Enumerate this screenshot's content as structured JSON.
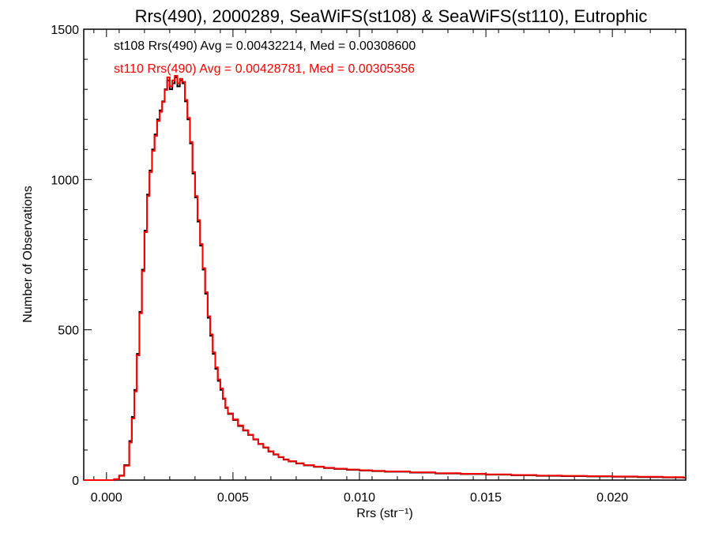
{
  "chart_data": {
    "type": "step-histogram",
    "title": "Rrs(490), 2000289, SeaWiFS(st108) & SeaWiFS(st110), Eutrophic",
    "xlabel": "Rrs (str⁻¹)",
    "ylabel": "Number of Observations",
    "xlim": [
      -0.0009,
      0.0229
    ],
    "ylim": [
      0,
      1500
    ],
    "xticks": [
      0.0,
      0.005,
      0.01,
      0.015,
      0.02
    ],
    "xtick_labels": [
      "0.000",
      "0.005",
      "0.010",
      "0.015",
      "0.020"
    ],
    "yticks": [
      0,
      500,
      1000,
      1500
    ],
    "ytick_labels": [
      "0",
      "500",
      "1000",
      "1500"
    ],
    "grid": false,
    "annotations": [
      {
        "text": "st108 Rrs(490) Avg = 0.00432214, Med = 0.00308600",
        "color": "#000000"
      },
      {
        "text": "st110 Rrs(490) Avg = 0.00428781, Med = 0.00305356",
        "color": "#ff0000"
      }
    ],
    "series": [
      {
        "color": "#000000",
        "points": [
          [
            -0.0009,
            0
          ],
          [
            0.0003,
            3
          ],
          [
            0.0005,
            15
          ],
          [
            0.0007,
            50
          ],
          [
            0.0009,
            130
          ],
          [
            0.001,
            210
          ],
          [
            0.0011,
            300
          ],
          [
            0.0012,
            420
          ],
          [
            0.0013,
            560
          ],
          [
            0.0014,
            700
          ],
          [
            0.0015,
            830
          ],
          [
            0.0016,
            950
          ],
          [
            0.0017,
            1030
          ],
          [
            0.0018,
            1100
          ],
          [
            0.0019,
            1150
          ],
          [
            0.002,
            1200
          ],
          [
            0.0021,
            1230
          ],
          [
            0.0022,
            1260
          ],
          [
            0.0023,
            1300
          ],
          [
            0.0024,
            1330
          ],
          [
            0.0025,
            1300
          ],
          [
            0.0026,
            1320
          ],
          [
            0.0027,
            1340
          ],
          [
            0.0028,
            1310
          ],
          [
            0.0029,
            1330
          ],
          [
            0.003,
            1320
          ],
          [
            0.0031,
            1260
          ],
          [
            0.0032,
            1200
          ],
          [
            0.0033,
            1120
          ],
          [
            0.0034,
            1020
          ],
          [
            0.0035,
            940
          ],
          [
            0.0036,
            860
          ],
          [
            0.0037,
            780
          ],
          [
            0.0038,
            700
          ],
          [
            0.0039,
            620
          ],
          [
            0.004,
            540
          ],
          [
            0.0041,
            480
          ],
          [
            0.0042,
            420
          ],
          [
            0.0043,
            370
          ],
          [
            0.0044,
            330
          ],
          [
            0.0045,
            300
          ],
          [
            0.0046,
            270
          ],
          [
            0.0047,
            240
          ],
          [
            0.0048,
            220
          ],
          [
            0.005,
            200
          ],
          [
            0.0052,
            180
          ],
          [
            0.0054,
            165
          ],
          [
            0.0056,
            150
          ],
          [
            0.0058,
            135
          ],
          [
            0.006,
            120
          ],
          [
            0.0062,
            108
          ],
          [
            0.0064,
            95
          ],
          [
            0.0066,
            85
          ],
          [
            0.0068,
            76
          ],
          [
            0.007,
            68
          ],
          [
            0.0072,
            62
          ],
          [
            0.0075,
            55
          ],
          [
            0.0078,
            49
          ],
          [
            0.0082,
            44
          ],
          [
            0.0086,
            40
          ],
          [
            0.009,
            37
          ],
          [
            0.0095,
            34
          ],
          [
            0.01,
            32
          ],
          [
            0.0105,
            30
          ],
          [
            0.011,
            28
          ],
          [
            0.012,
            25
          ],
          [
            0.013,
            22
          ],
          [
            0.014,
            20
          ],
          [
            0.015,
            18
          ],
          [
            0.016,
            16
          ],
          [
            0.017,
            14
          ],
          [
            0.018,
            13
          ],
          [
            0.019,
            12
          ],
          [
            0.02,
            11
          ],
          [
            0.021,
            10
          ],
          [
            0.022,
            9
          ],
          [
            0.0228,
            8
          ]
        ]
      },
      {
        "color": "#ff0000",
        "points": [
          [
            -0.0009,
            0
          ],
          [
            0.0003,
            3
          ],
          [
            0.0005,
            14
          ],
          [
            0.0007,
            48
          ],
          [
            0.0009,
            125
          ],
          [
            0.001,
            205
          ],
          [
            0.0011,
            295
          ],
          [
            0.0012,
            415
          ],
          [
            0.0013,
            555
          ],
          [
            0.0014,
            695
          ],
          [
            0.0015,
            825
          ],
          [
            0.0016,
            945
          ],
          [
            0.0017,
            1025
          ],
          [
            0.0018,
            1095
          ],
          [
            0.0019,
            1145
          ],
          [
            0.002,
            1195
          ],
          [
            0.0021,
            1225
          ],
          [
            0.0022,
            1258
          ],
          [
            0.0023,
            1298
          ],
          [
            0.0024,
            1340
          ],
          [
            0.0025,
            1310
          ],
          [
            0.0026,
            1330
          ],
          [
            0.0027,
            1345
          ],
          [
            0.0028,
            1320
          ],
          [
            0.0029,
            1335
          ],
          [
            0.003,
            1325
          ],
          [
            0.0031,
            1265
          ],
          [
            0.0032,
            1205
          ],
          [
            0.0033,
            1125
          ],
          [
            0.0034,
            1025
          ],
          [
            0.0035,
            945
          ],
          [
            0.0036,
            865
          ],
          [
            0.0037,
            785
          ],
          [
            0.0038,
            705
          ],
          [
            0.0039,
            625
          ],
          [
            0.004,
            545
          ],
          [
            0.0041,
            485
          ],
          [
            0.0042,
            425
          ],
          [
            0.0043,
            375
          ],
          [
            0.0044,
            335
          ],
          [
            0.0045,
            305
          ],
          [
            0.0046,
            272
          ],
          [
            0.0047,
            242
          ],
          [
            0.0048,
            222
          ],
          [
            0.005,
            202
          ],
          [
            0.0052,
            182
          ],
          [
            0.0054,
            166
          ],
          [
            0.0056,
            151
          ],
          [
            0.0058,
            136
          ],
          [
            0.006,
            121
          ],
          [
            0.0062,
            109
          ],
          [
            0.0064,
            96
          ],
          [
            0.0066,
            86
          ],
          [
            0.0068,
            77
          ],
          [
            0.007,
            69
          ],
          [
            0.0072,
            63
          ],
          [
            0.0075,
            56
          ],
          [
            0.0078,
            50
          ],
          [
            0.0082,
            45
          ],
          [
            0.0086,
            41
          ],
          [
            0.009,
            38
          ],
          [
            0.0095,
            35
          ],
          [
            0.01,
            33
          ],
          [
            0.0105,
            31
          ],
          [
            0.011,
            29
          ],
          [
            0.012,
            26
          ],
          [
            0.013,
            23
          ],
          [
            0.014,
            21
          ],
          [
            0.015,
            19
          ],
          [
            0.016,
            17
          ],
          [
            0.017,
            15
          ],
          [
            0.018,
            14
          ],
          [
            0.019,
            13
          ],
          [
            0.02,
            12
          ],
          [
            0.021,
            11
          ],
          [
            0.022,
            10
          ],
          [
            0.0228,
            9
          ]
        ]
      }
    ]
  }
}
